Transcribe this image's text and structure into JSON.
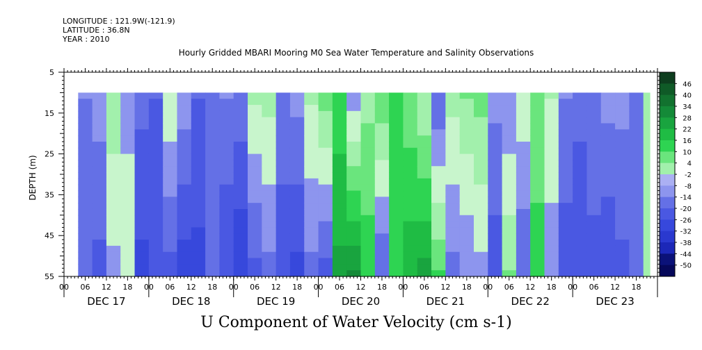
{
  "meta": {
    "longitude": "LONGITUDE : 121.9W(-121.9)",
    "latitude": "LATITUDE : 36.8N",
    "year": "YEAR : 2010"
  },
  "chart_data": {
    "type": "heatmap",
    "title": "Hourly Gridded MBARI Mooring M0 Sea Water Temperature and Salinity Observations",
    "xlabel": "U Component of Water Velocity (cm s-1)",
    "ylabel": "DEPTH (m)",
    "y_ticks": [
      5,
      15,
      25,
      35,
      45,
      55
    ],
    "ylim": [
      55,
      5
    ],
    "data_depth_range": [
      10,
      55
    ],
    "x_hour_labels": [
      "00",
      "06",
      "12",
      "18",
      "00",
      "06",
      "12",
      "18",
      "00",
      "06",
      "12",
      "18",
      "00",
      "06",
      "12",
      "18",
      "00",
      "06",
      "12",
      "18",
      "00",
      "06",
      "12",
      "18",
      "00",
      "06",
      "12",
      "18"
    ],
    "x_day_labels": [
      "DEC 17",
      "DEC 18",
      "DEC 19",
      "DEC 20",
      "DEC 21",
      "DEC 22",
      "DEC 23"
    ],
    "xlim_days": [
      0,
      7
    ],
    "data_start_hour": 4,
    "colorbar": {
      "labels": [
        "46",
        "40",
        "34",
        "28",
        "22",
        "16",
        "10",
        "4",
        "-2",
        "-8",
        "-14",
        "-20",
        "-26",
        "-32",
        "-38",
        "-44",
        "-50"
      ],
      "min": -50,
      "max": 50,
      "step": 3
    },
    "profile_hours": [
      4,
      8,
      12,
      16,
      20,
      24,
      28,
      32,
      36,
      40,
      44,
      48,
      52,
      56,
      60,
      64,
      68,
      72,
      76,
      80,
      84,
      88,
      92,
      96,
      100,
      104,
      108,
      112,
      116,
      120,
      124,
      128,
      132,
      136,
      140,
      144,
      148,
      152,
      156,
      160,
      164,
      168
    ],
    "u_surface_cm_s": [
      -8,
      -5,
      8,
      -4,
      -12,
      -14,
      3,
      -4,
      -14,
      -12,
      -8,
      -10,
      5,
      6,
      -10,
      -6,
      5,
      12,
      18,
      -6,
      8,
      14,
      16,
      12,
      4,
      -14,
      6,
      10,
      12,
      -6,
      -8,
      2,
      10,
      4,
      -8,
      -12,
      -10,
      -6,
      -6,
      -10,
      4,
      -8
    ],
    "u_bottom_cm_s": [
      -12,
      -16,
      -4,
      2,
      -22,
      -18,
      -16,
      -24,
      -22,
      -14,
      -20,
      -26,
      -16,
      -10,
      -18,
      -22,
      -10,
      -16,
      30,
      34,
      20,
      -14,
      20,
      26,
      30,
      16,
      -10,
      -8,
      -4,
      -18,
      10,
      -14,
      20,
      -6,
      -18,
      -20,
      -16,
      -20,
      -16,
      -10,
      4,
      8
    ]
  }
}
